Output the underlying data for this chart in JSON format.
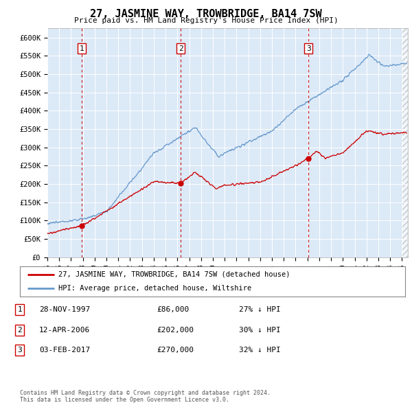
{
  "title": "27, JASMINE WAY, TROWBRIDGE, BA14 7SW",
  "subtitle": "Price paid vs. HM Land Registry's House Price Index (HPI)",
  "title_fontsize": 11,
  "subtitle_fontsize": 8.5,
  "bg_color": "#dce9f7",
  "red_line_label": "27, JASMINE WAY, TROWBRIDGE, BA14 7SW (detached house)",
  "blue_line_label": "HPI: Average price, detached house, Wiltshire",
  "footer": "Contains HM Land Registry data © Crown copyright and database right 2024.\nThis data is licensed under the Open Government Licence v3.0.",
  "transactions": [
    {
      "num": 1,
      "date": "28-NOV-1997",
      "price": 86000,
      "pct": "27% ↓ HPI",
      "year": 1997.91
    },
    {
      "num": 2,
      "date": "12-APR-2006",
      "price": 202000,
      "pct": "30% ↓ HPI",
      "year": 2006.28
    },
    {
      "num": 3,
      "date": "03-FEB-2017",
      "price": 270000,
      "pct": "32% ↓ HPI",
      "year": 2017.09
    }
  ],
  "ylim": [
    0,
    625000
  ],
  "xlim_left": 1995.0,
  "xlim_right": 2025.5,
  "yticks": [
    0,
    50000,
    100000,
    150000,
    200000,
    250000,
    300000,
    350000,
    400000,
    450000,
    500000,
    550000,
    600000
  ],
  "ytick_labels": [
    "£0",
    "£50K",
    "£100K",
    "£150K",
    "£200K",
    "£250K",
    "£300K",
    "£350K",
    "£400K",
    "£450K",
    "£500K",
    "£550K",
    "£600K"
  ],
  "xticks": [
    1995,
    1996,
    1997,
    1998,
    1999,
    2000,
    2001,
    2002,
    2003,
    2004,
    2005,
    2006,
    2007,
    2008,
    2009,
    2010,
    2011,
    2012,
    2013,
    2014,
    2015,
    2016,
    2017,
    2018,
    2019,
    2020,
    2021,
    2022,
    2023,
    2024,
    2025
  ],
  "red_color": "#cc0000",
  "blue_color": "#6699cc",
  "dashed_color": "#cc0000",
  "marker_color": "#cc0000",
  "legend_border_color": "#888888",
  "grid_color": "white",
  "spine_color": "#aaaaaa"
}
